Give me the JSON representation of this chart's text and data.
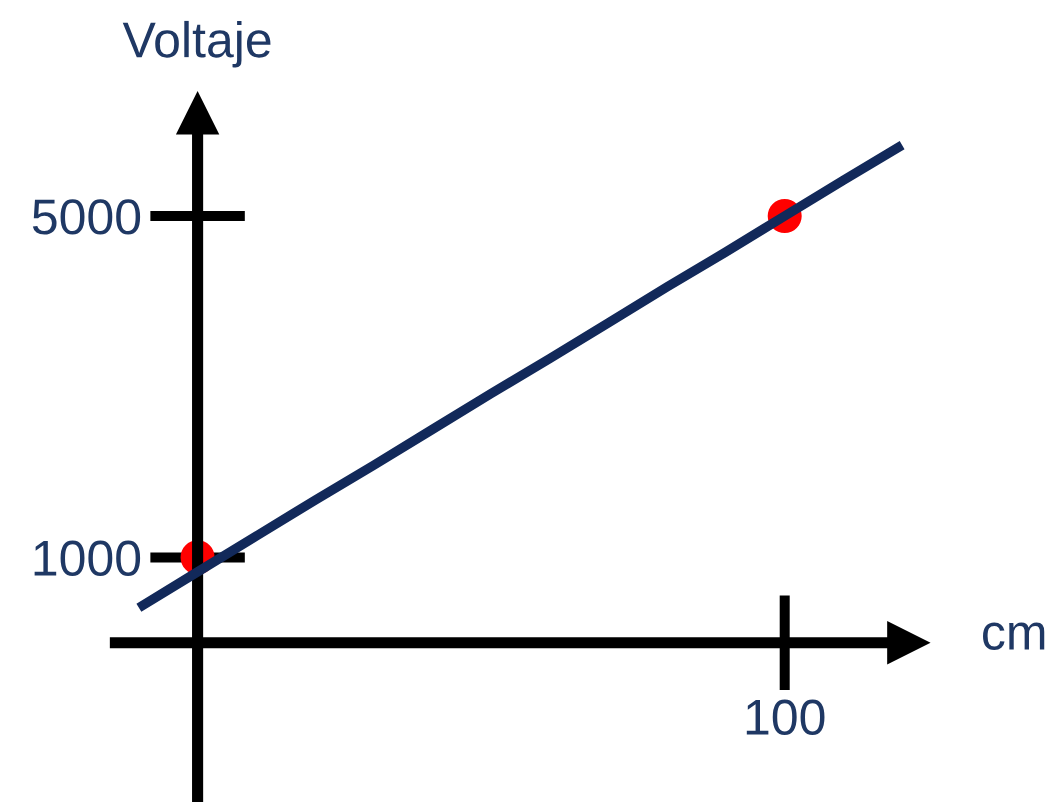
{
  "chart_data": {
    "type": "scatter",
    "xlabel": "cm",
    "ylabel": "Voltaje",
    "categories": [
      null,
      null,
      null,
      null,
      null,
      null,
      null,
      null,
      null,
      null,
      null,
      "100",
      null,
      null
    ],
    "ylim": [
      -1850,
      6200
    ],
    "yticks": [
      1000,
      5000
    ],
    "series": [
      {
        "type": "line",
        "color": "#12295a",
        "values": [
          410,
          830,
          1250,
          1670,
          2080,
          2500,
          2920,
          3330,
          3750,
          4170,
          4580,
          5000,
          5420,
          5830
        ]
      },
      {
        "color": "#ff0000",
        "values": [
          null,
          1000,
          null,
          null,
          null,
          null,
          null,
          null,
          null,
          null,
          null,
          5000,
          null,
          null
        ],
        "marker": "circle"
      }
    ]
  }
}
